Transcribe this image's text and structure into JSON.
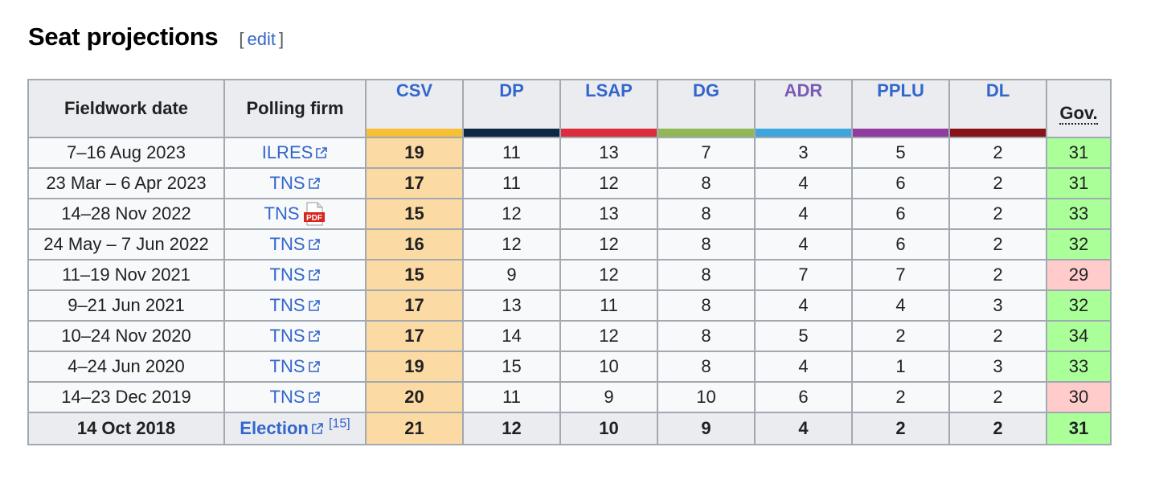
{
  "section": {
    "title": "Seat projections",
    "edit_open": "[",
    "edit_label": "edit",
    "edit_close": "]"
  },
  "colors": {
    "link": "#3366cc",
    "csv_fill": "#fcdaa4",
    "gov_majority": "#aaff99",
    "gov_minority": "#ffcccb",
    "party_bars": {
      "CSV": "#f6bf35",
      "DP": "#0c2a45",
      "LSAP": "#dc2d3c",
      "DG": "#92b855",
      "ADR": "#3ea5dd",
      "PPLU": "#903ba0",
      "DL": "#881319"
    },
    "party_text": {
      "ADR": "#7b5ab6"
    }
  },
  "table": {
    "headers": {
      "date": "Fieldwork date",
      "firm": "Polling firm",
      "gov": "Gov."
    },
    "parties": [
      "CSV",
      "DP",
      "LSAP",
      "DG",
      "ADR",
      "PPLU",
      "DL"
    ],
    "rows": [
      {
        "date": "7–16 Aug 2023",
        "firm": "ILRES",
        "icon": "external-link-icon",
        "csv": "19",
        "dp": "11",
        "lsap": "13",
        "dg": "7",
        "adr": "3",
        "pplu": "5",
        "dl": "2",
        "gov": "31",
        "gov_status": "majority"
      },
      {
        "date": "23 Mar – 6 Apr 2023",
        "firm": "TNS",
        "icon": "external-link-icon",
        "csv": "17",
        "dp": "11",
        "lsap": "12",
        "dg": "8",
        "adr": "4",
        "pplu": "6",
        "dl": "2",
        "gov": "31",
        "gov_status": "majority"
      },
      {
        "date": "14–28 Nov 2022",
        "firm": "TNS",
        "icon": "pdf-icon",
        "csv": "15",
        "dp": "12",
        "lsap": "13",
        "dg": "8",
        "adr": "4",
        "pplu": "6",
        "dl": "2",
        "gov": "33",
        "gov_status": "majority"
      },
      {
        "date": "24 May – 7 Jun 2022",
        "firm": "TNS",
        "icon": "external-link-icon",
        "csv": "16",
        "dp": "12",
        "lsap": "12",
        "dg": "8",
        "adr": "4",
        "pplu": "6",
        "dl": "2",
        "gov": "32",
        "gov_status": "majority"
      },
      {
        "date": "11–19 Nov 2021",
        "firm": "TNS",
        "icon": "external-link-icon",
        "csv": "15",
        "dp": "9",
        "lsap": "12",
        "dg": "8",
        "adr": "7",
        "pplu": "7",
        "dl": "2",
        "gov": "29",
        "gov_status": "minority"
      },
      {
        "date": "9–21 Jun 2021",
        "firm": "TNS",
        "icon": "external-link-icon",
        "csv": "17",
        "dp": "13",
        "lsap": "11",
        "dg": "8",
        "adr": "4",
        "pplu": "4",
        "dl": "3",
        "gov": "32",
        "gov_status": "majority"
      },
      {
        "date": "10–24 Nov 2020",
        "firm": "TNS",
        "icon": "external-link-icon",
        "csv": "17",
        "dp": "14",
        "lsap": "12",
        "dg": "8",
        "adr": "5",
        "pplu": "2",
        "dl": "2",
        "gov": "34",
        "gov_status": "majority"
      },
      {
        "date": "4–24 Jun 2020",
        "firm": "TNS",
        "icon": "external-link-icon",
        "csv": "19",
        "dp": "15",
        "lsap": "10",
        "dg": "8",
        "adr": "4",
        "pplu": "1",
        "dl": "3",
        "gov": "33",
        "gov_status": "majority"
      },
      {
        "date": "14–23 Dec 2019",
        "firm": "TNS",
        "icon": "external-link-icon",
        "csv": "20",
        "dp": "11",
        "lsap": "9",
        "dg": "10",
        "adr": "6",
        "pplu": "2",
        "dl": "2",
        "gov": "30",
        "gov_status": "minority"
      }
    ],
    "election_row": {
      "date": "14 Oct 2018",
      "firm": "Election",
      "ref": "[15]",
      "csv": "21",
      "dp": "12",
      "lsap": "10",
      "dg": "9",
      "adr": "4",
      "pplu": "2",
      "dl": "2",
      "gov": "31",
      "gov_status": "majority"
    }
  }
}
